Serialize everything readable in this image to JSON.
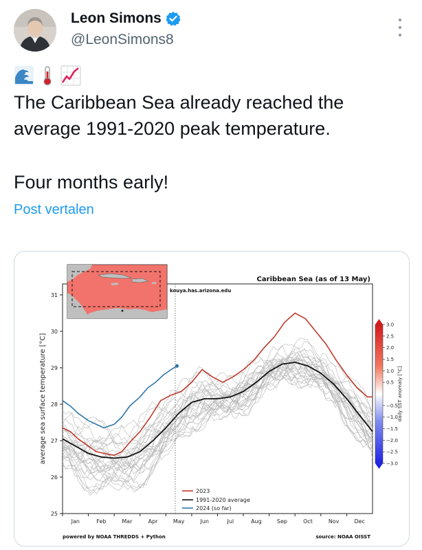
{
  "author": {
    "name": "Leon Simons",
    "handle": "@LeonSimons8",
    "verified_color": "#1d9bf0"
  },
  "emojis": [
    "ocean-wave-icon",
    "thermometer-icon",
    "chart-increasing-icon"
  ],
  "tweet": {
    "line1": "The Caribbean Sea already reached the",
    "line2": "average 1991-2020 peak temperature.",
    "line3": "Four months early!"
  },
  "translate_label": "Post vertalen",
  "chart_data": {
    "type": "line",
    "title": "Caribbean Sea (as of 13 May)",
    "ylabel": "average sea surface temperature [°C]",
    "xlabel": "",
    "ylim": [
      25,
      31.3
    ],
    "y_ticks": [
      "25",
      "26",
      "27",
      "28",
      "29",
      "30",
      "31"
    ],
    "months": [
      "Jan",
      "Feb",
      "Mar",
      "Apr",
      "May",
      "Jun",
      "Jul",
      "Aug",
      "Sep",
      "Oct",
      "Nov",
      "Dec"
    ],
    "x_unit": "month (1 = start of Jan, 13 = end of Dec)",
    "site_label": "kouya.has.arizona.edu",
    "footer_left": "powered by NOAA THREDDS + Python",
    "footer_right": "source: NOAA OISST",
    "colorbar": {
      "label": "daily SST anomaly [°C]",
      "ticks": [
        "3.0",
        "2.5",
        "2.0",
        "1.5",
        "1.0",
        "0.5",
        "−0.5",
        "−1.0",
        "−1.5",
        "−2.0",
        "−2.5",
        "−3.0"
      ],
      "range": [
        -3,
        3
      ]
    },
    "series": [
      {
        "name": "2023",
        "color": "#c0392b",
        "points": [
          [
            1,
            27.35
          ],
          [
            1.3,
            27.25
          ],
          [
            1.6,
            27.05
          ],
          [
            2.0,
            26.85
          ],
          [
            2.3,
            26.7
          ],
          [
            2.6,
            26.65
          ],
          [
            3.0,
            26.6
          ],
          [
            3.3,
            26.7
          ],
          [
            3.6,
            26.95
          ],
          [
            4.0,
            27.25
          ],
          [
            4.4,
            27.65
          ],
          [
            4.8,
            28.1
          ],
          [
            5.2,
            28.25
          ],
          [
            5.6,
            28.35
          ],
          [
            6.0,
            28.6
          ],
          [
            6.4,
            28.95
          ],
          [
            6.8,
            28.75
          ],
          [
            7.2,
            28.6
          ],
          [
            7.6,
            28.75
          ],
          [
            8.0,
            28.95
          ],
          [
            8.4,
            29.2
          ],
          [
            8.8,
            29.55
          ],
          [
            9.2,
            29.85
          ],
          [
            9.6,
            30.25
          ],
          [
            10.0,
            30.5
          ],
          [
            10.4,
            30.35
          ],
          [
            10.8,
            30.0
          ],
          [
            11.2,
            29.65
          ],
          [
            11.6,
            29.2
          ],
          [
            12.0,
            28.8
          ],
          [
            12.4,
            28.45
          ],
          [
            12.8,
            28.2
          ],
          [
            13.0,
            28.2
          ]
        ]
      },
      {
        "name": "1991-2020 average",
        "color": "#111111",
        "points": [
          [
            1,
            27.05
          ],
          [
            1.5,
            26.85
          ],
          [
            2.0,
            26.65
          ],
          [
            2.5,
            26.55
          ],
          [
            3.0,
            26.52
          ],
          [
            3.5,
            26.55
          ],
          [
            4.0,
            26.7
          ],
          [
            4.5,
            27.0
          ],
          [
            5.0,
            27.35
          ],
          [
            5.5,
            27.75
          ],
          [
            6.0,
            28.05
          ],
          [
            6.5,
            28.15
          ],
          [
            7.0,
            28.15
          ],
          [
            7.5,
            28.2
          ],
          [
            8.0,
            28.35
          ],
          [
            8.5,
            28.6
          ],
          [
            9.0,
            28.9
          ],
          [
            9.5,
            29.1
          ],
          [
            10.0,
            29.15
          ],
          [
            10.5,
            29.05
          ],
          [
            11.0,
            28.85
          ],
          [
            11.5,
            28.55
          ],
          [
            12.0,
            28.15
          ],
          [
            12.5,
            27.7
          ],
          [
            13.0,
            27.25
          ]
        ]
      },
      {
        "name": "2024 (so far)",
        "color": "#2e75a8",
        "points": [
          [
            1,
            28.1
          ],
          [
            1.3,
            27.95
          ],
          [
            1.6,
            27.75
          ],
          [
            2.0,
            27.55
          ],
          [
            2.3,
            27.45
          ],
          [
            2.6,
            27.35
          ],
          [
            3.0,
            27.45
          ],
          [
            3.3,
            27.65
          ],
          [
            3.6,
            27.95
          ],
          [
            4.0,
            28.2
          ],
          [
            4.3,
            28.45
          ],
          [
            4.6,
            28.6
          ],
          [
            4.9,
            28.8
          ],
          [
            5.2,
            28.95
          ],
          [
            5.43,
            29.05
          ]
        ]
      }
    ],
    "legend": [
      "2023",
      "1991-2020 average",
      "2024 (so far)"
    ]
  }
}
